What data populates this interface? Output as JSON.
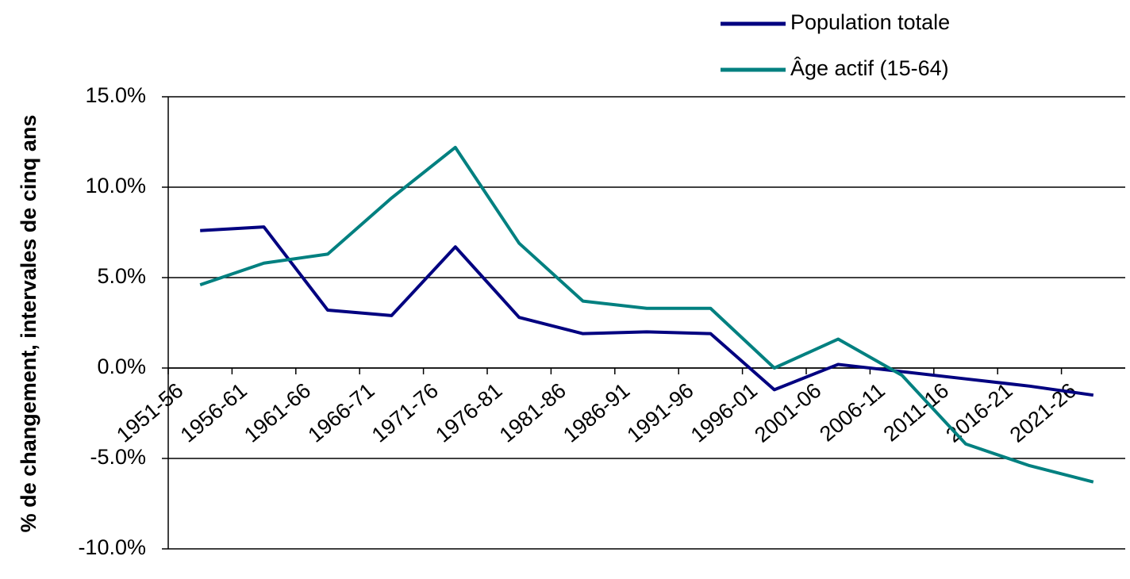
{
  "chart_data": {
    "type": "line",
    "y_label": "% de changement, intervales de cinq ans",
    "categories": [
      "1951-56",
      "1956-61",
      "1961-66",
      "1966-71",
      "1971-76",
      "1976-81",
      "1981-86",
      "1986-91",
      "1991-96",
      "1996-01",
      "2001-06",
      "2006-11",
      "2011-16",
      "2016-21",
      "2021-26"
    ],
    "series": [
      {
        "name": "Population totale",
        "color": "#000080",
        "values": [
          7.6,
          7.8,
          3.2,
          2.9,
          6.7,
          2.8,
          1.9,
          2.0,
          1.9,
          -1.2,
          0.2,
          -0.2,
          -0.6,
          -1.0,
          -1.5
        ]
      },
      {
        "name": "Âge actif (15-64)",
        "color": "#008080",
        "values": [
          4.6,
          5.8,
          6.3,
          9.4,
          12.2,
          6.9,
          3.7,
          3.3,
          3.3,
          0.0,
          1.6,
          -0.4,
          -4.2,
          -5.4,
          -6.3
        ]
      }
    ],
    "ylim": [
      -10,
      15
    ],
    "yticks": [
      {
        "value": -10,
        "label": "-10.0%"
      },
      {
        "value": -5,
        "label": "-5.0%"
      },
      {
        "value": 0,
        "label": "0.0%"
      },
      {
        "value": 5,
        "label": "5.0%"
      },
      {
        "value": 10,
        "label": "10.0%"
      },
      {
        "value": 15,
        "label": "15.0%"
      }
    ],
    "grid": true,
    "legend": "top-right"
  }
}
